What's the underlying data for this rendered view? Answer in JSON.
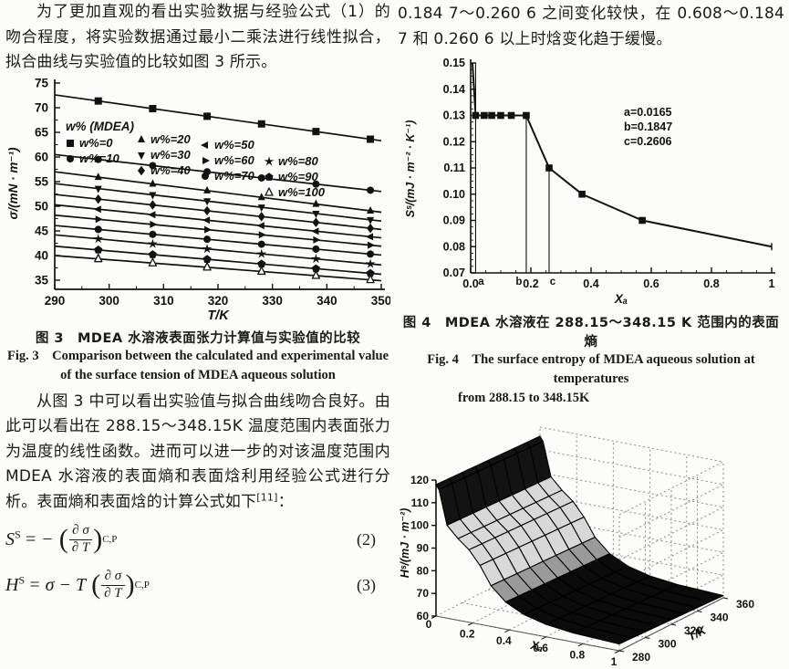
{
  "page": {
    "background": "#fcfcf8",
    "ink": "#1a1a1a"
  },
  "left_column": {
    "para1": "为了更加直观的看出实验数据与经验公式（1）的吻合程度，将实验数据通过最小二乘法进行线性拟合，拟合曲线与实验值的比较如图 3 所示。",
    "para2_main": "从图 3 中可以看出实验值与拟合曲线吻合良好。由此可以看出在 288.15～348.15K 温度范围内表面张力为温度的线性函数。进而可以进一步的对该温度范围内 MDEA 水溶液的表面熵和表面焓利用经验公式进行分析。表面熵和表面焓的计算公式如下",
    "para2_ref": "[11]",
    "para2_tail": "："
  },
  "right_column": {
    "para1": "0.184 7～0.260 6 之间变化较快，在 0.608～0.184 7 和 0.260 6 以上时焓变化趋于缓慢。"
  },
  "fig3": {
    "caption_cn": "图 3　MDEA 水溶液表面张力计算值与实验值的比较",
    "caption_en_line1": "Fig. 3　Comparison between the calculated and experimental value",
    "caption_en_line2": "of the surface tension of MDEA aqueous solution",
    "chart_data": {
      "type": "line",
      "title": "",
      "xlabel": "T/K",
      "ylabel": "σ/(mN · m⁻¹)",
      "xlim": [
        290,
        350
      ],
      "ylim": [
        35,
        75
      ],
      "xticks": [
        290,
        300,
        310,
        320,
        330,
        340,
        350
      ],
      "yticks": [
        35,
        40,
        45,
        50,
        55,
        60,
        65,
        70,
        75
      ],
      "marker_x": [
        298,
        308,
        318,
        328,
        338,
        348
      ],
      "legend_title": "w% (MDEA)",
      "series": [
        {
          "label": "w%=0",
          "marker": "square",
          "y_at_290": 72.6,
          "y_at_350": 63.3
        },
        {
          "label": "w%=10",
          "marker": "circle",
          "y_at_290": 60.5,
          "y_at_350": 53.0
        },
        {
          "label": "w%=20",
          "marker": "triangle-up",
          "y_at_290": 57.0,
          "y_at_350": 48.8
        },
        {
          "label": "w%=30",
          "marker": "triangle-down",
          "y_at_290": 54.6,
          "y_at_350": 47.0
        },
        {
          "label": "w%=40",
          "marker": "diamond",
          "y_at_290": 52.4,
          "y_at_350": 45.3
        },
        {
          "label": "w%=50",
          "marker": "triangle-left",
          "y_at_290": 50.3,
          "y_at_350": 43.6
        },
        {
          "label": "w%=60",
          "marker": "triangle-right",
          "y_at_290": 48.2,
          "y_at_350": 41.9
        },
        {
          "label": "w%=70",
          "marker": "circle",
          "y_at_290": 46.1,
          "y_at_350": 40.1
        },
        {
          "label": "w%=80",
          "marker": "star",
          "y_at_290": 44.2,
          "y_at_350": 38.1
        },
        {
          "label": "w%=90",
          "marker": "pentagon",
          "y_at_290": 41.9,
          "y_at_350": 36.2
        },
        {
          "label": "w%=100",
          "marker": "triangle-open",
          "y_at_290": 40.0,
          "y_at_350": 34.9
        }
      ]
    }
  },
  "fig4": {
    "caption_cn": "图 4　MDEA 水溶液在 288.15～348.15 K 范围内的表面熵",
    "caption_en_line1": "Fig. 4　The surface entropy of MDEA aqueous solution at temperatures",
    "caption_en_line2": "from 288.15 to 348.15K",
    "chart_data": {
      "type": "line",
      "xlabel": "Xₐ",
      "ylabel": "Sˢ/(mJ · m⁻² · K⁻¹)",
      "xlim": [
        0,
        1
      ],
      "ylim": [
        0.07,
        0.15
      ],
      "xtick_values": [
        0,
        0.2,
        0.4,
        0.6,
        0.8,
        1
      ],
      "xtick_labels": [
        "0.0",
        "0.2",
        "0.4",
        "0.6",
        "0.8",
        "1"
      ],
      "ytick_values": [
        0.07,
        0.08,
        0.09,
        0.1,
        0.11,
        0.12,
        0.13,
        0.14,
        0.15
      ],
      "ytick_labels": [
        "0.07",
        "0.08",
        "0.09",
        "0.10",
        "0.11",
        "0.12",
        "0.13",
        "0.14",
        "0.15"
      ],
      "annotation_lines": [
        "a=0.0165",
        "b=0.1847",
        "c=0.2606"
      ],
      "vlines": [
        {
          "x": 0.0165,
          "y_top": 0.15,
          "label": "a"
        },
        {
          "x": 0.1847,
          "y_top": 0.13,
          "label": "b"
        },
        {
          "x": 0.2606,
          "y_top": 0.11,
          "label": "c"
        }
      ],
      "curve": [
        [
          0.006,
          0.15
        ],
        [
          0.0165,
          0.13
        ],
        [
          0.045,
          0.13
        ],
        [
          0.07,
          0.13
        ],
        [
          0.1,
          0.13
        ],
        [
          0.135,
          0.13
        ],
        [
          0.1847,
          0.13
        ],
        [
          0.2606,
          0.11
        ],
        [
          0.37,
          0.1
        ],
        [
          0.57,
          0.09
        ],
        [
          1.0,
          0.08
        ]
      ],
      "marker_indices": [
        1,
        2,
        3,
        4,
        5,
        6,
        7,
        8,
        9
      ]
    }
  },
  "fig5": {
    "chart_data": {
      "type": "surface",
      "xlabel": "Xₐ",
      "ylabel": "T/K",
      "zlabel": "Hˢ/(mJ · m⁻²)",
      "xlim": [
        0,
        1
      ],
      "ylim": [
        280,
        360
      ],
      "zlim": [
        60,
        120
      ],
      "xtick_values": [
        0,
        0.2,
        0.4,
        0.6,
        0.8,
        1
      ],
      "xtick_labels": [
        "0",
        "0.2",
        "0.4",
        "0.6",
        "0.8",
        "1"
      ],
      "ytick_values": [
        280,
        300,
        320,
        340,
        360
      ],
      "ztick_values": [
        60,
        70,
        80,
        90,
        100,
        110,
        120
      ],
      "x_grid": [
        0,
        0.0165,
        0.06,
        0.12,
        0.18,
        0.24,
        0.3,
        0.38,
        0.48,
        0.6,
        0.75,
        1.0
      ],
      "h_profile": [
        118,
        116,
        101,
        96,
        92,
        86,
        78,
        72,
        68,
        65.5,
        64,
        63
      ],
      "t_rows": 9,
      "h_t_slope": -2
    }
  },
  "equations": {
    "paren_open": "(",
    "paren_close": ")",
    "eq2": {
      "lhs": "S",
      "sup": "S",
      "pre": "= −",
      "num": "∂ σ",
      "den": "∂ T",
      "sub": "C,P",
      "label": "(2)"
    },
    "eq3": {
      "lhs": "H",
      "sup": "S",
      "pre": "= σ − T",
      "num": "∂ σ",
      "den": "∂ T",
      "sub": "C,P",
      "label": "(3)"
    }
  }
}
